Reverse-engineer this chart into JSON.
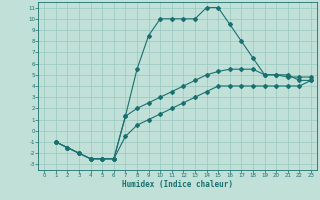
{
  "xlabel": "Humidex (Indice chaleur)",
  "bg_color": "#c0e0d8",
  "grid_color": "#98c8c0",
  "line_color": "#1a7070",
  "xlim": [
    -0.5,
    23.5
  ],
  "ylim": [
    -3.5,
    11.5
  ],
  "xticks": [
    0,
    1,
    2,
    3,
    4,
    5,
    6,
    7,
    8,
    9,
    10,
    11,
    12,
    13,
    14,
    15,
    16,
    17,
    18,
    19,
    20,
    21,
    22,
    23
  ],
  "yticks": [
    -3,
    -2,
    -1,
    0,
    1,
    2,
    3,
    4,
    5,
    6,
    7,
    8,
    9,
    10,
    11
  ],
  "curve1_x": [
    1,
    2,
    3,
    4,
    5,
    6,
    7,
    8,
    9,
    10,
    11,
    12,
    13,
    14,
    15,
    16,
    17,
    18,
    19,
    20,
    21,
    22,
    23
  ],
  "curve1_y": [
    -1,
    -1.5,
    -2,
    -2.5,
    -2.5,
    -2.5,
    1.3,
    5.5,
    8.5,
    10,
    10,
    10,
    10,
    11,
    11,
    9.5,
    8,
    6.5,
    5,
    5,
    5,
    4.5,
    4.5
  ],
  "curve2_x": [
    1,
    2,
    3,
    4,
    5,
    6,
    7,
    8,
    9,
    10,
    11,
    12,
    13,
    14,
    15,
    16,
    17,
    18,
    19,
    20,
    21,
    22,
    23
  ],
  "curve2_y": [
    -1,
    -1.5,
    -2,
    -2.5,
    -2.5,
    -2.5,
    1.3,
    2.0,
    2.5,
    3.0,
    3.5,
    4.0,
    4.5,
    5.0,
    5.3,
    5.5,
    5.5,
    5.5,
    5.0,
    5.0,
    4.8,
    4.8,
    4.8
  ],
  "curve3_x": [
    1,
    2,
    3,
    4,
    5,
    6,
    7,
    8,
    9,
    10,
    11,
    12,
    13,
    14,
    15,
    16,
    17,
    18,
    19,
    20,
    21,
    22,
    23
  ],
  "curve3_y": [
    -1,
    -1.5,
    -2,
    -2.5,
    -2.5,
    -2.5,
    -0.5,
    0.5,
    1.0,
    1.5,
    2.0,
    2.5,
    3.0,
    3.5,
    4.0,
    4.0,
    4.0,
    4.0,
    4.0,
    4.0,
    4.0,
    4.0,
    4.5
  ]
}
